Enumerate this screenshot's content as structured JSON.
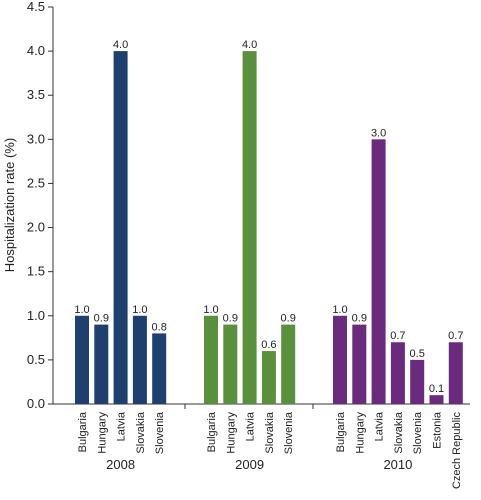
{
  "chart_data": {
    "type": "bar",
    "y_label": "Hospitalization rate (%)",
    "ylim": [
      0,
      4.5
    ],
    "yticks": [
      {
        "value": 0,
        "label": "0.0"
      },
      0.5,
      {
        "value": 1,
        "label": "1.0"
      },
      1.5,
      {
        "value": 2,
        "label": "2.0"
      },
      2.5,
      {
        "value": 3,
        "label": "3.0"
      },
      3.5,
      {
        "value": 4,
        "label": "4.0"
      },
      4.5
    ],
    "groups": [
      {
        "name": "2008",
        "color": "#1f3f6e",
        "categories": [
          "Bulgaria",
          "Hungary",
          "Latvia",
          "Slovakia",
          "Slovenia"
        ],
        "values": [
          1.0,
          0.9,
          4.0,
          1.0,
          0.8
        ],
        "value_labels": [
          "1.0",
          "0.9",
          "4.0",
          "1.0",
          "0.8"
        ]
      },
      {
        "name": "2009",
        "color": "#5a8f3c",
        "categories": [
          "Bulgaria",
          "Hungary",
          "Latvia",
          "Slovakia",
          "Slovenia"
        ],
        "values": [
          1.0,
          0.9,
          4.0,
          0.6,
          0.9
        ],
        "value_labels": [
          "1.0",
          "0.9",
          "4.0",
          "0.6",
          "0.9"
        ]
      },
      {
        "name": "2010",
        "color": "#6a2a7e",
        "categories": [
          "Bulgaria",
          "Hungary",
          "Latvia",
          "Slovakia",
          "Slovenia",
          "Estonia",
          "Czech Republic"
        ],
        "values": [
          1.0,
          0.9,
          3.0,
          0.7,
          0.5,
          0.1,
          0.7
        ],
        "value_labels": [
          "1.0",
          "0.9",
          "3.0",
          "0.7",
          "0.5",
          "0.1",
          "0.7"
        ]
      }
    ]
  }
}
